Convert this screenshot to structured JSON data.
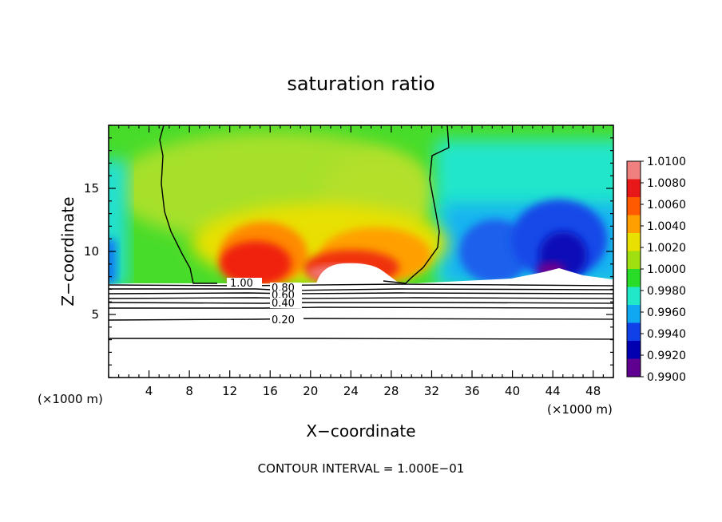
{
  "chart_data": {
    "type": "heatmap",
    "title": "saturation ratio",
    "xlabel": "X−coordinate",
    "ylabel": "Z−coordinate",
    "x_unit_label": "(×1000 m)",
    "z_unit_label": "(×1000 m)",
    "xlim": [
      0,
      50
    ],
    "ylim": [
      0,
      20
    ],
    "x_ticks": [
      4,
      8,
      12,
      16,
      20,
      24,
      28,
      32,
      36,
      40,
      44,
      48
    ],
    "y_ticks": [
      5,
      10,
      15
    ],
    "colorbar": {
      "labels": [
        "1.0100",
        "1.0080",
        "1.0060",
        "1.0040",
        "1.0020",
        "1.0000",
        "0.9980",
        "0.9960",
        "0.9940",
        "0.9920",
        "0.9900"
      ],
      "values": [
        1.01,
        1.008,
        1.006,
        1.004,
        1.002,
        1.0,
        0.998,
        0.996,
        0.994,
        0.992,
        0.99
      ],
      "colors": [
        "#f08080",
        "#e81818",
        "#ff5a00",
        "#ffa000",
        "#e8e000",
        "#a0e010",
        "#28dc28",
        "#20e8c8",
        "#10a8f0",
        "#1040e8",
        "#0000b0",
        "#600090"
      ]
    },
    "contour_labels": [
      "1.00",
      "0.80",
      "0.60",
      "0.40",
      "0.20"
    ],
    "contour_levels_below_cloud": [
      {
        "label": "1.00",
        "z": 7.5
      },
      {
        "label": "0.80",
        "z": 7.0
      },
      {
        "label": "0.60",
        "z": 6.6
      },
      {
        "label": "0.40",
        "z": 6.0
      },
      {
        "label": "0.20",
        "z": 4.6
      },
      {
        "label": "",
        "z": 3.1
      }
    ],
    "cloud_boundary_x": [
      10.5,
      29.5
    ],
    "cloud_base_z": 7.5,
    "note": "CONTOUR INTERVAL = 1.000E−01"
  }
}
